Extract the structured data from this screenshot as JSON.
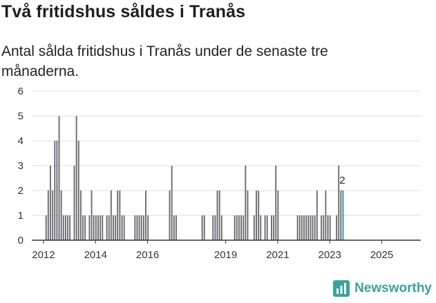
{
  "chart_data": {
    "type": "bar",
    "title": "Två fritidshus såldes i Tranås",
    "subtitle": "Antal sålda fritidshus i Tranås under de senaste tre månaderna.",
    "xlabel": "",
    "ylabel": "",
    "ylim": [
      0,
      6
    ],
    "y_ticks": [
      "0",
      "1",
      "2",
      "3",
      "4",
      "5",
      "6"
    ],
    "x_ticks": [
      {
        "label": "2012",
        "year": 2012.0
      },
      {
        "label": "2014",
        "year": 2014.0
      },
      {
        "label": "2016",
        "year": 2016.0
      },
      {
        "label": "2019",
        "year": 2019.0
      },
      {
        "label": "2021",
        "year": 2021.0
      },
      {
        "label": "2023",
        "year": 2023.0
      },
      {
        "label": "2025",
        "year": 2025.0
      }
    ],
    "x_range": [
      2011.55,
      2026.5
    ],
    "grid": true,
    "bar_color": "#6e6d75",
    "highlight_color": "#2a9d97",
    "start_year": 2012.1,
    "step_years": 0.0833,
    "values": [
      1,
      2,
      3,
      2,
      4,
      4,
      5,
      2,
      1,
      1,
      1,
      1,
      0,
      3,
      5,
      4,
      2,
      1,
      1,
      0,
      1,
      2,
      1,
      1,
      1,
      1,
      1,
      0,
      1,
      1,
      2,
      1,
      1,
      2,
      2,
      1,
      1,
      0,
      0,
      0,
      0,
      1,
      1,
      1,
      1,
      1,
      2,
      1,
      0,
      0,
      0,
      0,
      0,
      0,
      0,
      0,
      0,
      2,
      3,
      1,
      1,
      0,
      0,
      0,
      0,
      0,
      0,
      0,
      0,
      0,
      0,
      0,
      1,
      1,
      0,
      0,
      0,
      1,
      1,
      2,
      2,
      1,
      0,
      0,
      0,
      0,
      0,
      1,
      1,
      1,
      1,
      1,
      3,
      2,
      0,
      0,
      1,
      2,
      2,
      1,
      0,
      1,
      1,
      0,
      1,
      1,
      3,
      2,
      0,
      0,
      0,
      0,
      0,
      0,
      0,
      0,
      1,
      1,
      1,
      1,
      1,
      1,
      1,
      1,
      1,
      2,
      0,
      1,
      1,
      2,
      1,
      1,
      0,
      0,
      1,
      3,
      2
    ],
    "highlight": {
      "value": 2,
      "label": "2"
    }
  },
  "branding": {
    "name": "Newsworthy",
    "accent": "#3aa39a"
  }
}
